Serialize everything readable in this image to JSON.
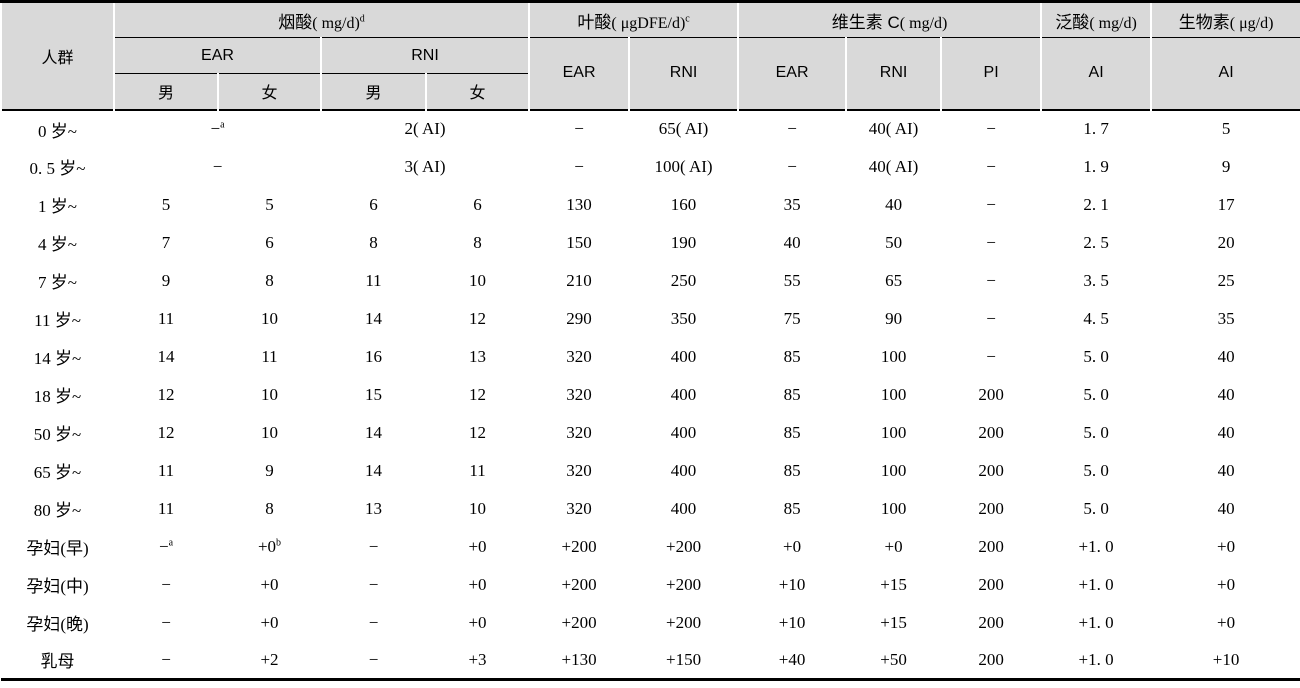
{
  "style": {
    "header_bg": "#d9d9d9",
    "rule_color": "#000000"
  },
  "header": {
    "population": "人群",
    "groups": [
      {
        "name": "烟酸",
        "unit": "( mg/d)",
        "sup": "d"
      },
      {
        "name": "叶酸",
        "unit": "( μgDFE/d)",
        "sup": "c"
      },
      {
        "name": "维生素 C",
        "unit": "( mg/d)",
        "sup": ""
      },
      {
        "name": "泛酸",
        "unit": "( mg/d)",
        "sup": ""
      },
      {
        "name": "生物素",
        "unit": "( μg/d)",
        "sup": ""
      }
    ],
    "sub": [
      "EAR",
      "RNI",
      "EAR",
      "RNI",
      "EAR",
      "RNI",
      "PI",
      "AI",
      "AI"
    ],
    "sexes": [
      "男",
      "女",
      "男",
      "女"
    ]
  },
  "rows": [
    {
      "label": "0 岁~",
      "cells": [
        {
          "v": "−",
          "sup": "a",
          "span": 2
        },
        {
          "v": "2( AI)",
          "span": 2
        },
        {
          "v": "−"
        },
        {
          "v": "65( AI)"
        },
        {
          "v": "−"
        },
        {
          "v": "40( AI)"
        },
        {
          "v": "−"
        },
        {
          "v": "1. 7"
        },
        {
          "v": "5"
        }
      ]
    },
    {
      "label": "0. 5 岁~",
      "cells": [
        {
          "v": "−",
          "span": 2
        },
        {
          "v": "3( AI)",
          "span": 2
        },
        {
          "v": "−"
        },
        {
          "v": "100( AI)"
        },
        {
          "v": "−"
        },
        {
          "v": "40( AI)"
        },
        {
          "v": "−"
        },
        {
          "v": "1. 9"
        },
        {
          "v": "9"
        }
      ]
    },
    {
      "label": "1 岁~",
      "cells": [
        {
          "v": "5"
        },
        {
          "v": "5"
        },
        {
          "v": "6"
        },
        {
          "v": "6"
        },
        {
          "v": "130"
        },
        {
          "v": "160"
        },
        {
          "v": "35"
        },
        {
          "v": "40"
        },
        {
          "v": "−"
        },
        {
          "v": "2. 1"
        },
        {
          "v": "17"
        }
      ]
    },
    {
      "label": "4 岁~",
      "cells": [
        {
          "v": "7"
        },
        {
          "v": "6"
        },
        {
          "v": "8"
        },
        {
          "v": "8"
        },
        {
          "v": "150"
        },
        {
          "v": "190"
        },
        {
          "v": "40"
        },
        {
          "v": "50"
        },
        {
          "v": "−"
        },
        {
          "v": "2. 5"
        },
        {
          "v": "20"
        }
      ]
    },
    {
      "label": "7 岁~",
      "cells": [
        {
          "v": "9"
        },
        {
          "v": "8"
        },
        {
          "v": "11"
        },
        {
          "v": "10"
        },
        {
          "v": "210"
        },
        {
          "v": "250"
        },
        {
          "v": "55"
        },
        {
          "v": "65"
        },
        {
          "v": "−"
        },
        {
          "v": "3. 5"
        },
        {
          "v": "25"
        }
      ]
    },
    {
      "label": "11 岁~",
      "cells": [
        {
          "v": "11"
        },
        {
          "v": "10"
        },
        {
          "v": "14"
        },
        {
          "v": "12"
        },
        {
          "v": "290"
        },
        {
          "v": "350"
        },
        {
          "v": "75"
        },
        {
          "v": "90"
        },
        {
          "v": "−"
        },
        {
          "v": "4. 5"
        },
        {
          "v": "35"
        }
      ]
    },
    {
      "label": "14 岁~",
      "cells": [
        {
          "v": "14"
        },
        {
          "v": "11"
        },
        {
          "v": "16"
        },
        {
          "v": "13"
        },
        {
          "v": "320"
        },
        {
          "v": "400"
        },
        {
          "v": "85"
        },
        {
          "v": "100"
        },
        {
          "v": "−"
        },
        {
          "v": "5. 0"
        },
        {
          "v": "40"
        }
      ]
    },
    {
      "label": "18 岁~",
      "cells": [
        {
          "v": "12"
        },
        {
          "v": "10"
        },
        {
          "v": "15"
        },
        {
          "v": "12"
        },
        {
          "v": "320"
        },
        {
          "v": "400"
        },
        {
          "v": "85"
        },
        {
          "v": "100"
        },
        {
          "v": "200"
        },
        {
          "v": "5. 0"
        },
        {
          "v": "40"
        }
      ]
    },
    {
      "label": "50 岁~",
      "cells": [
        {
          "v": "12"
        },
        {
          "v": "10"
        },
        {
          "v": "14"
        },
        {
          "v": "12"
        },
        {
          "v": "320"
        },
        {
          "v": "400"
        },
        {
          "v": "85"
        },
        {
          "v": "100"
        },
        {
          "v": "200"
        },
        {
          "v": "5. 0"
        },
        {
          "v": "40"
        }
      ]
    },
    {
      "label": "65 岁~",
      "cells": [
        {
          "v": "11"
        },
        {
          "v": "9"
        },
        {
          "v": "14"
        },
        {
          "v": "11"
        },
        {
          "v": "320"
        },
        {
          "v": "400"
        },
        {
          "v": "85"
        },
        {
          "v": "100"
        },
        {
          "v": "200"
        },
        {
          "v": "5. 0"
        },
        {
          "v": "40"
        }
      ]
    },
    {
      "label": "80 岁~",
      "cells": [
        {
          "v": "11"
        },
        {
          "v": "8"
        },
        {
          "v": "13"
        },
        {
          "v": "10"
        },
        {
          "v": "320"
        },
        {
          "v": "400"
        },
        {
          "v": "85"
        },
        {
          "v": "100"
        },
        {
          "v": "200"
        },
        {
          "v": "5. 0"
        },
        {
          "v": "40"
        }
      ]
    },
    {
      "label": "孕妇(早)",
      "cells": [
        {
          "v": "−",
          "sup": "a"
        },
        {
          "v": "+0",
          "sup": "b"
        },
        {
          "v": "−"
        },
        {
          "v": "+0"
        },
        {
          "v": "+200"
        },
        {
          "v": "+200"
        },
        {
          "v": "+0"
        },
        {
          "v": "+0"
        },
        {
          "v": "200"
        },
        {
          "v": "+1. 0"
        },
        {
          "v": "+0"
        }
      ]
    },
    {
      "label": "孕妇(中)",
      "cells": [
        {
          "v": "−"
        },
        {
          "v": "+0"
        },
        {
          "v": "−"
        },
        {
          "v": "+0"
        },
        {
          "v": "+200"
        },
        {
          "v": "+200"
        },
        {
          "v": "+10"
        },
        {
          "v": "+15"
        },
        {
          "v": "200"
        },
        {
          "v": "+1. 0"
        },
        {
          "v": "+0"
        }
      ]
    },
    {
      "label": "孕妇(晚)",
      "cells": [
        {
          "v": "−"
        },
        {
          "v": "+0"
        },
        {
          "v": "−"
        },
        {
          "v": "+0"
        },
        {
          "v": "+200"
        },
        {
          "v": "+200"
        },
        {
          "v": "+10"
        },
        {
          "v": "+15"
        },
        {
          "v": "200"
        },
        {
          "v": "+1. 0"
        },
        {
          "v": "+0"
        }
      ]
    },
    {
      "label": "乳母",
      "cells": [
        {
          "v": "−"
        },
        {
          "v": "+2"
        },
        {
          "v": "−"
        },
        {
          "v": "+3"
        },
        {
          "v": "+130"
        },
        {
          "v": "+150"
        },
        {
          "v": "+40"
        },
        {
          "v": "+50"
        },
        {
          "v": "200"
        },
        {
          "v": "+1. 0"
        },
        {
          "v": "+10"
        }
      ]
    }
  ]
}
